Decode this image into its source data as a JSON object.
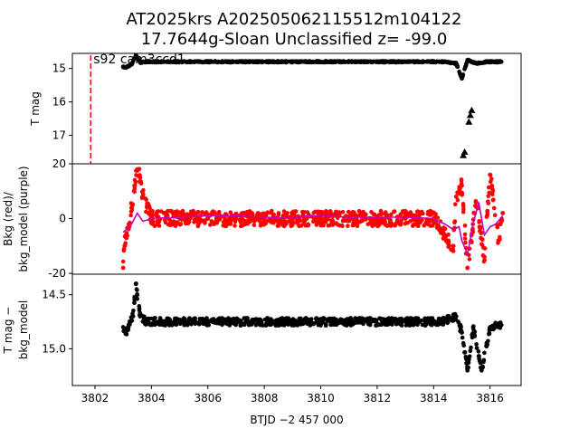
{
  "title_line1": "AT2025krs  A202505062115512m104122",
  "title_line2": "17.7644g-Sloan Unclassified z= -99.0",
  "annotation": "s92 cam3ccd1",
  "xlabel": "BTJD −2 457 000",
  "colors": {
    "flux": "#000000",
    "bkg": "#ff0000",
    "bkg_model": "#bf00bf",
    "marker_line": "#ff0000"
  },
  "chart_data": [
    {
      "type": "scatter",
      "panel": "top",
      "ylabel": "T mag",
      "yticks": [
        15,
        16,
        17
      ],
      "ylim": [
        17.85,
        14.55
      ],
      "xlim": [
        3801.2,
        3817.1
      ],
      "marker_line_x": 3801.85,
      "series": [
        {
          "style": "dots-black",
          "points": [
            [
              3803.0,
              14.95
            ],
            [
              3803.1,
              14.98
            ],
            [
              3803.2,
              14.92
            ],
            [
              3803.3,
              14.88
            ],
            [
              3803.45,
              14.6
            ],
            [
              3803.6,
              14.82
            ],
            [
              3803.8,
              14.8
            ],
            [
              3804.5,
              14.8
            ],
            [
              3805.5,
              14.8
            ],
            [
              3806.5,
              14.8
            ],
            [
              3807.5,
              14.8
            ],
            [
              3808.5,
              14.8
            ],
            [
              3809.5,
              14.8
            ],
            [
              3810.5,
              14.8
            ],
            [
              3811.5,
              14.8
            ],
            [
              3812.5,
              14.8
            ],
            [
              3813.5,
              14.8
            ],
            [
              3814.3,
              14.8
            ],
            [
              3814.8,
              14.85
            ],
            [
              3815.0,
              15.3
            ],
            [
              3815.2,
              14.75
            ],
            [
              3815.5,
              14.85
            ],
            [
              3815.9,
              14.8
            ],
            [
              3816.4,
              14.8
            ]
          ]
        },
        {
          "style": "triangles-black",
          "points": [
            [
              3815.05,
              17.6
            ],
            [
              3815.1,
              17.5
            ],
            [
              3815.25,
              16.6
            ],
            [
              3815.3,
              16.4
            ],
            [
              3815.35,
              16.25
            ]
          ]
        }
      ]
    },
    {
      "type": "scatter",
      "panel": "middle",
      "ylabel_line1": "Bkg (red)/",
      "ylabel_line2": "bkg_model (purple)",
      "yticks": [
        -20,
        0,
        20
      ],
      "ylim": [
        -20.3,
        20
      ],
      "xlim": [
        3801.2,
        3817.1
      ],
      "series": [
        {
          "style": "dots-red",
          "points": [
            [
              3803.0,
              -18
            ],
            [
              3803.05,
              -10
            ],
            [
              3803.1,
              -6
            ],
            [
              3803.2,
              -2
            ],
            [
              3803.3,
              4
            ],
            [
              3803.4,
              12
            ],
            [
              3803.5,
              18
            ],
            [
              3803.6,
              15
            ],
            [
              3803.7,
              8
            ],
            [
              3804.0,
              0
            ],
            [
              3805.0,
              0
            ],
            [
              3806.0,
              0
            ],
            [
              3807.0,
              0
            ],
            [
              3808.0,
              0
            ],
            [
              3809.0,
              0
            ],
            [
              3810.0,
              0
            ],
            [
              3811.0,
              0
            ],
            [
              3812.0,
              0
            ],
            [
              3813.0,
              0
            ],
            [
              3814.0,
              0
            ],
            [
              3814.4,
              -6
            ],
            [
              3814.7,
              -10
            ],
            [
              3814.8,
              8
            ],
            [
              3815.0,
              12
            ],
            [
              3815.2,
              -18
            ],
            [
              3815.5,
              6
            ],
            [
              3815.8,
              -14
            ],
            [
              3816.0,
              16
            ],
            [
              3816.3,
              -8
            ],
            [
              3816.45,
              2
            ]
          ]
        },
        {
          "style": "line-purple",
          "name": "",
          "points": [
            [
              3803.0,
              -5
            ],
            [
              3803.3,
              -2
            ],
            [
              3803.5,
              2
            ],
            [
              3803.7,
              -1
            ],
            [
              3804.0,
              0
            ],
            [
              3805.0,
              0.5
            ],
            [
              3806.0,
              1
            ],
            [
              3807.0,
              1
            ],
            [
              3808.0,
              0.5
            ],
            [
              3809.0,
              0
            ],
            [
              3809.5,
              1
            ],
            [
              3810.0,
              1
            ],
            [
              3811.0,
              0.5
            ],
            [
              3812.0,
              0.5
            ],
            [
              3813.0,
              0.5
            ],
            [
              3814.0,
              0
            ],
            [
              3814.4,
              -2
            ],
            [
              3814.7,
              -4
            ],
            [
              3814.9,
              -3
            ],
            [
              3815.0,
              -8
            ],
            [
              3815.2,
              -13
            ],
            [
              3815.4,
              -2
            ],
            [
              3815.6,
              6
            ],
            [
              3815.8,
              -6
            ],
            [
              3816.0,
              -3
            ],
            [
              3816.2,
              -2
            ],
            [
              3816.45,
              1
            ]
          ]
        }
      ]
    },
    {
      "type": "scatter",
      "panel": "bottom",
      "ylabel_line1": "T mag −",
      "ylabel_line2": "bkg_model",
      "yticks": [
        14.5,
        15.0
      ],
      "ylim": [
        15.34,
        14.31
      ],
      "xlim": [
        3801.2,
        3817.1
      ],
      "xticks": [
        3802,
        3804,
        3806,
        3808,
        3810,
        3812,
        3814,
        3816
      ],
      "series": [
        {
          "style": "dots-black",
          "points": [
            [
              3803.0,
              14.8
            ],
            [
              3803.1,
              14.85
            ],
            [
              3803.2,
              14.78
            ],
            [
              3803.35,
              14.7
            ],
            [
              3803.45,
              14.4
            ],
            [
              3803.5,
              14.5
            ],
            [
              3803.6,
              14.7
            ],
            [
              3803.8,
              14.75
            ],
            [
              3804.5,
              14.75
            ],
            [
              3805.5,
              14.75
            ],
            [
              3806.5,
              14.75
            ],
            [
              3807.5,
              14.75
            ],
            [
              3808.5,
              14.75
            ],
            [
              3809.5,
              14.75
            ],
            [
              3810.5,
              14.75
            ],
            [
              3811.5,
              14.75
            ],
            [
              3812.5,
              14.75
            ],
            [
              3813.5,
              14.75
            ],
            [
              3814.3,
              14.75
            ],
            [
              3814.8,
              14.7
            ],
            [
              3815.0,
              14.85
            ],
            [
              3815.2,
              15.2
            ],
            [
              3815.4,
              14.8
            ],
            [
              3815.7,
              15.2
            ],
            [
              3816.0,
              14.8
            ],
            [
              3816.4,
              14.78
            ]
          ]
        }
      ]
    }
  ]
}
